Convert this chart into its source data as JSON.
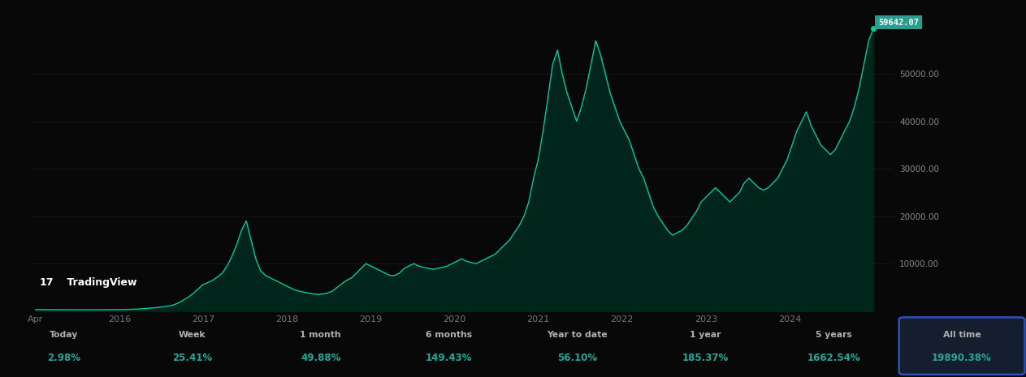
{
  "background_color": "#080808",
  "line_color": "#00c9a0",
  "fill_color": "#00251a",
  "price_label_bg": "#2a9d8f",
  "price_label_text": "#ffffff",
  "text_color_white": "#b0b0b0",
  "text_color_green": "#26a69a",
  "ytick_color": "#888888",
  "xtick_color": "#777777",
  "tradingview_logo_color": "#ffffff",
  "all_time_box_border": "#2a52be",
  "all_time_box_bg": "#141e2e",
  "x_labels": [
    "Apr",
    "2016",
    "2017",
    "2018",
    "2019",
    "2020",
    "2021",
    "2022",
    "2023",
    "2024"
  ],
  "y_ticks": [
    10000,
    20000,
    30000,
    40000,
    50000
  ],
  "y_tick_labels": [
    "10000.00",
    "20000.00",
    "30000.00",
    "40000.00",
    "50000.00"
  ],
  "price_annotation": "59642.07",
  "stats": [
    {
      "period": "Today",
      "value": "2.98%"
    },
    {
      "period": "Week",
      "value": "25.41%"
    },
    {
      "period": "1 month",
      "value": "49.88%"
    },
    {
      "period": "6 months",
      "value": "149.43%"
    },
    {
      "period": "Year to date",
      "value": "56.10%"
    },
    {
      "period": "1 year",
      "value": "185.37%"
    },
    {
      "period": "5 years",
      "value": "1662.54%"
    },
    {
      "period": "All time",
      "value": "19890.38%"
    }
  ],
  "btc_prices": [
    295,
    290,
    288,
    285,
    282,
    280,
    278,
    276,
    274,
    272,
    270,
    268,
    270,
    272,
    275,
    280,
    285,
    295,
    310,
    330,
    360,
    400,
    450,
    530,
    620,
    710,
    800,
    950,
    1100,
    1350,
    1800,
    2400,
    3000,
    3800,
    4700,
    5600,
    6000,
    6500,
    7200,
    8000,
    9500,
    11500,
    14000,
    17000,
    19000,
    15000,
    11000,
    8500,
    7500,
    7000,
    6500,
    6000,
    5500,
    5000,
    4500,
    4200,
    4000,
    3800,
    3600,
    3500,
    3600,
    3800,
    4200,
    5000,
    5800,
    6500,
    7000,
    8000,
    9000,
    10000,
    9500,
    9000,
    8500,
    8000,
    7500,
    7500,
    8000,
    9000,
    9500,
    10000,
    9500,
    9200,
    9000,
    8800,
    9000,
    9200,
    9500,
    10000,
    10500,
    11000,
    10500,
    10200,
    10000,
    10500,
    11000,
    11500,
    12000,
    13000,
    14000,
    15000,
    16500,
    18000,
    20000,
    23000,
    28000,
    32000,
    38000,
    45000,
    52000,
    55000,
    50000,
    46000,
    43000,
    40000,
    43000,
    47000,
    52000,
    57000,
    54000,
    50000,
    46000,
    43000,
    40000,
    38000,
    36000,
    33000,
    30000,
    28000,
    25000,
    22000,
    20000,
    18500,
    17000,
    16000,
    16500,
    17000,
    18000,
    19500,
    21000,
    23000,
    24000,
    25000,
    26000,
    25000,
    24000,
    23000,
    24000,
    25000,
    27000,
    28000,
    27000,
    26000,
    25500,
    26000,
    27000,
    28000,
    30000,
    32000,
    35000,
    38000,
    40000,
    42000,
    39000,
    37000,
    35000,
    34000,
    33000,
    34000,
    36000,
    38000,
    40000,
    43000,
    47000,
    52000,
    57000,
    59642
  ]
}
